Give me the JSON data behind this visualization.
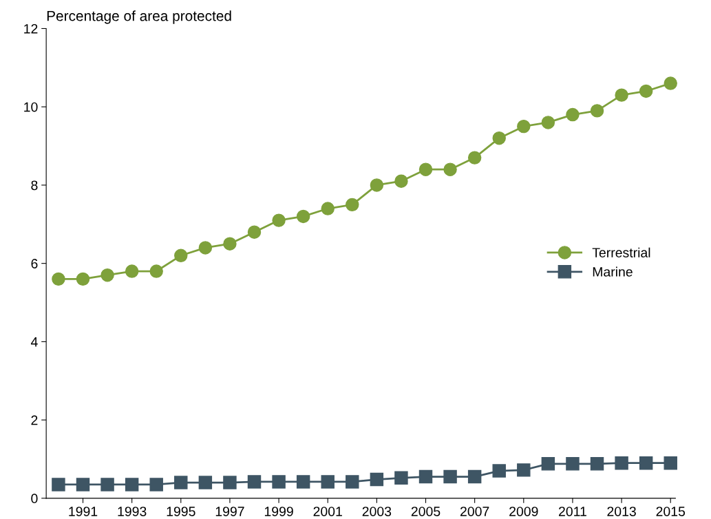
{
  "chart_data": {
    "type": "line",
    "ylabel": "Percentage of area protected",
    "x": [
      1990,
      1991,
      1992,
      1993,
      1994,
      1995,
      1996,
      1997,
      1998,
      1999,
      2000,
      2001,
      2002,
      2003,
      2004,
      2005,
      2006,
      2007,
      2008,
      2009,
      2010,
      2011,
      2012,
      2013,
      2014,
      2015
    ],
    "series": [
      {
        "name": "Terrestrial",
        "color": "#7ea13b",
        "marker": "circle",
        "values": [
          5.6,
          5.6,
          5.7,
          5.8,
          5.8,
          6.2,
          6.4,
          6.5,
          6.8,
          7.1,
          7.2,
          7.4,
          7.5,
          8.0,
          8.1,
          8.4,
          8.4,
          8.7,
          9.2,
          9.5,
          9.6,
          9.8,
          9.9,
          10.3,
          10.4,
          10.6
        ]
      },
      {
        "name": "Marine",
        "color": "#3e5564",
        "marker": "square",
        "values": [
          0.35,
          0.35,
          0.35,
          0.35,
          0.35,
          0.4,
          0.4,
          0.4,
          0.42,
          0.42,
          0.42,
          0.42,
          0.42,
          0.48,
          0.52,
          0.55,
          0.55,
          0.55,
          0.7,
          0.72,
          0.88,
          0.88,
          0.88,
          0.9,
          0.9,
          0.9
        ]
      }
    ],
    "xlim": [
      1989.5,
      2015.2
    ],
    "xticks": [
      1991,
      1993,
      1995,
      1997,
      1999,
      2001,
      2003,
      2005,
      2007,
      2009,
      2011,
      2013,
      2015
    ],
    "ylim": [
      0,
      12
    ],
    "yticks": [
      0,
      2,
      4,
      6,
      8,
      10,
      12
    ],
    "grid": false,
    "legend": "right",
    "line_style": "solid"
  }
}
